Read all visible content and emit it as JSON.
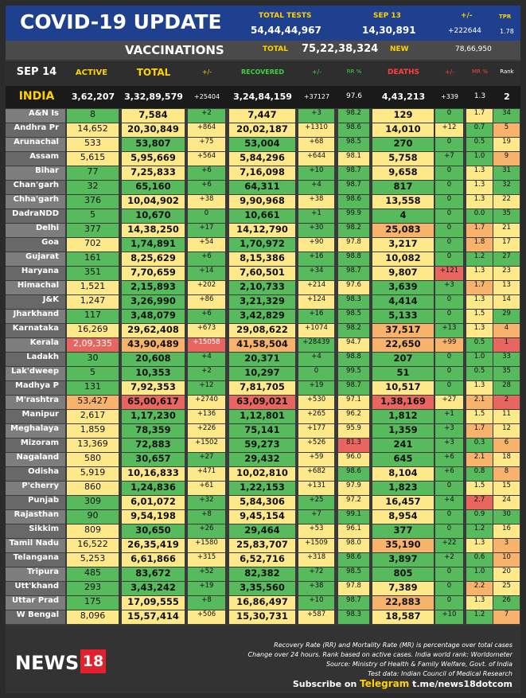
{
  "header": {
    "title": "COVID-19 UPDATE",
    "total_tests_label": "TOTAL TESTS",
    "total_tests": "54,44,44,967",
    "date_label": "SEP 13",
    "date_tests": "14,30,891",
    "change_label": "+/-",
    "change": "+222644",
    "tpr_label": "TPR",
    "tpr": "1.78"
  },
  "vaccinations": {
    "label": "VACCINATIONS",
    "total_label": "TOTAL",
    "total": "75,22,38,324",
    "new_label": "NEW",
    "new": "78,66,950"
  },
  "columns": {
    "date": "SEP 14",
    "active": "ACTIVE",
    "total": "TOTAL",
    "pm1": "+/-",
    "recovered": "RECOVERED",
    "pm2": "+/-",
    "rr": "RR %",
    "deaths": "DEATHS",
    "pm3": "+/-",
    "mr": "MR %",
    "rank": "Rank"
  },
  "india": {
    "name": "INDIA",
    "active": "3,62,207",
    "total": "3,32,89,579",
    "d_total": "+25404",
    "recovered": "3,24,84,159",
    "d_rec": "+37127",
    "rr": "97.6",
    "deaths": "4,43,213",
    "d_deaths": "+339",
    "mr": "1.3",
    "rank": "2"
  },
  "colors": {
    "header_bg": "#1f3f8f",
    "accent_yellow": "#ffd200",
    "green_text": "#3fd43f",
    "red_text": "#ff4040",
    "cell_green": "#57bb5e",
    "cell_yellow": "#fde98a",
    "cell_orange": "#f7b36b",
    "cell_red": "#e8665f"
  },
  "states": [
    {
      "name": "A&N Is",
      "active": "8",
      "total": "7,584",
      "d_total": "+2",
      "recovered": "7,447",
      "d_rec": "+3",
      "rr": "98.2",
      "deaths": "129",
      "d_deaths": "0",
      "mr": "1.7",
      "rank": "34",
      "c": [
        "g",
        "y",
        "g",
        "y",
        "g",
        "g",
        "y",
        "g",
        "y",
        "g"
      ]
    },
    {
      "name": "Andhra Pr",
      "active": "14,652",
      "total": "20,30,849",
      "d_total": "+864",
      "recovered": "20,02,187",
      "d_rec": "+1310",
      "rr": "98.6",
      "deaths": "14,010",
      "d_deaths": "+12",
      "mr": "0.7",
      "rank": "5",
      "c": [
        "y",
        "y",
        "y",
        "y",
        "y",
        "g",
        "y",
        "y",
        "g",
        "o"
      ]
    },
    {
      "name": "Arunachal",
      "active": "533",
      "total": "53,807",
      "d_total": "+75",
      "recovered": "53,004",
      "d_rec": "+68",
      "rr": "98.5",
      "deaths": "270",
      "d_deaths": "0",
      "mr": "0.5",
      "rank": "19",
      "c": [
        "y",
        "g",
        "y",
        "g",
        "y",
        "g",
        "g",
        "g",
        "g",
        "y"
      ]
    },
    {
      "name": "Assam",
      "active": "5,615",
      "total": "5,95,669",
      "d_total": "+564",
      "recovered": "5,84,296",
      "d_rec": "+644",
      "rr": "98.1",
      "deaths": "5,758",
      "d_deaths": "+7",
      "mr": "1.0",
      "rank": "9",
      "c": [
        "y",
        "y",
        "y",
        "y",
        "y",
        "y",
        "y",
        "g",
        "g",
        "o"
      ]
    },
    {
      "name": "Bihar",
      "active": "77",
      "total": "7,25,833",
      "d_total": "+6",
      "recovered": "7,16,098",
      "d_rec": "+10",
      "rr": "98.7",
      "deaths": "9,658",
      "d_deaths": "0",
      "mr": "1.3",
      "rank": "31",
      "c": [
        "g",
        "y",
        "g",
        "y",
        "g",
        "g",
        "y",
        "g",
        "y",
        "g"
      ]
    },
    {
      "name": "Chan'garh",
      "active": "32",
      "total": "65,160",
      "d_total": "+6",
      "recovered": "64,311",
      "d_rec": "+4",
      "rr": "98.7",
      "deaths": "817",
      "d_deaths": "0",
      "mr": "1.3",
      "rank": "32",
      "c": [
        "g",
        "g",
        "g",
        "g",
        "g",
        "g",
        "g",
        "g",
        "y",
        "g"
      ]
    },
    {
      "name": "Chha'garh",
      "active": "376",
      "total": "10,04,902",
      "d_total": "+38",
      "recovered": "9,90,968",
      "d_rec": "+38",
      "rr": "98.6",
      "deaths": "13,558",
      "d_deaths": "0",
      "mr": "1.3",
      "rank": "22",
      "c": [
        "g",
        "y",
        "y",
        "y",
        "y",
        "g",
        "y",
        "g",
        "y",
        "y"
      ]
    },
    {
      "name": "DadraNDD",
      "active": "5",
      "total": "10,670",
      "d_total": "0",
      "recovered": "10,661",
      "d_rec": "+1",
      "rr": "99.9",
      "deaths": "4",
      "d_deaths": "0",
      "mr": "0.0",
      "rank": "35",
      "c": [
        "g",
        "g",
        "g",
        "g",
        "g",
        "g",
        "g",
        "g",
        "g",
        "g"
      ]
    },
    {
      "name": "Delhi",
      "active": "377",
      "total": "14,38,250",
      "d_total": "+17",
      "recovered": "14,12,790",
      "d_rec": "+30",
      "rr": "98.2",
      "deaths": "25,083",
      "d_deaths": "0",
      "mr": "1.7",
      "rank": "21",
      "c": [
        "g",
        "y",
        "g",
        "y",
        "g",
        "g",
        "o",
        "g",
        "o",
        "y"
      ]
    },
    {
      "name": "Goa",
      "active": "702",
      "total": "1,74,891",
      "d_total": "+54",
      "recovered": "1,70,972",
      "d_rec": "+90",
      "rr": "97.8",
      "deaths": "3,217",
      "d_deaths": "0",
      "mr": "1.8",
      "rank": "17",
      "c": [
        "y",
        "g",
        "y",
        "g",
        "y",
        "y",
        "y",
        "g",
        "o",
        "y"
      ]
    },
    {
      "name": "Gujarat",
      "active": "161",
      "total": "8,25,629",
      "d_total": "+6",
      "recovered": "8,15,386",
      "d_rec": "+16",
      "rr": "98.8",
      "deaths": "10,082",
      "d_deaths": "0",
      "mr": "1.2",
      "rank": "27",
      "c": [
        "g",
        "y",
        "g",
        "y",
        "g",
        "g",
        "y",
        "g",
        "g",
        "g"
      ]
    },
    {
      "name": "Haryana",
      "active": "351",
      "total": "7,70,659",
      "d_total": "+14",
      "recovered": "7,60,501",
      "d_rec": "+34",
      "rr": "98.7",
      "deaths": "9,807",
      "d_deaths": "+121",
      "mr": "1.3",
      "rank": "23",
      "c": [
        "g",
        "y",
        "g",
        "y",
        "g",
        "g",
        "y",
        "r",
        "y",
        "y"
      ]
    },
    {
      "name": "Himachal",
      "active": "1,521",
      "total": "2,15,893",
      "d_total": "+202",
      "recovered": "2,10,733",
      "d_rec": "+214",
      "rr": "97.6",
      "deaths": "3,639",
      "d_deaths": "+3",
      "mr": "1.7",
      "rank": "13",
      "c": [
        "y",
        "g",
        "y",
        "g",
        "y",
        "y",
        "g",
        "g",
        "o",
        "y"
      ]
    },
    {
      "name": "J&K",
      "active": "1,247",
      "total": "3,26,990",
      "d_total": "+86",
      "recovered": "3,21,329",
      "d_rec": "+124",
      "rr": "98.3",
      "deaths": "4,414",
      "d_deaths": "0",
      "mr": "1.3",
      "rank": "14",
      "c": [
        "y",
        "g",
        "y",
        "g",
        "y",
        "g",
        "g",
        "g",
        "y",
        "y"
      ]
    },
    {
      "name": "Jharkhand",
      "active": "117",
      "total": "3,48,079",
      "d_total": "+6",
      "recovered": "3,42,829",
      "d_rec": "+16",
      "rr": "98.5",
      "deaths": "5,133",
      "d_deaths": "0",
      "mr": "1.5",
      "rank": "29",
      "c": [
        "g",
        "g",
        "g",
        "g",
        "g",
        "g",
        "g",
        "g",
        "y",
        "g"
      ]
    },
    {
      "name": "Karnataka",
      "active": "16,269",
      "total": "29,62,408",
      "d_total": "+673",
      "recovered": "29,08,622",
      "d_rec": "+1074",
      "rr": "98.2",
      "deaths": "37,517",
      "d_deaths": "+13",
      "mr": "1.3",
      "rank": "4",
      "c": [
        "y",
        "y",
        "y",
        "y",
        "y",
        "g",
        "o",
        "g",
        "y",
        "o"
      ]
    },
    {
      "name": "Kerala",
      "active": "2,09,335",
      "total": "43,90,489",
      "d_total": "+15058",
      "recovered": "41,58,504",
      "d_rec": "+28439",
      "rr": "94.7",
      "deaths": "22,650",
      "d_deaths": "+99",
      "mr": "0.5",
      "rank": "1",
      "c": [
        "r",
        "o",
        "r",
        "o",
        "g",
        "y",
        "o",
        "o",
        "g",
        "r"
      ]
    },
    {
      "name": "Ladakh",
      "active": "30",
      "total": "20,608",
      "d_total": "+4",
      "recovered": "20,371",
      "d_rec": "+4",
      "rr": "98.8",
      "deaths": "207",
      "d_deaths": "0",
      "mr": "1.0",
      "rank": "33",
      "c": [
        "g",
        "g",
        "g",
        "g",
        "g",
        "g",
        "g",
        "g",
        "g",
        "g"
      ]
    },
    {
      "name": "Lak'dweep",
      "active": "5",
      "total": "10,353",
      "d_total": "+2",
      "recovered": "10,297",
      "d_rec": "0",
      "rr": "99.5",
      "deaths": "51",
      "d_deaths": "0",
      "mr": "0.5",
      "rank": "35",
      "c": [
        "g",
        "g",
        "g",
        "g",
        "g",
        "g",
        "g",
        "g",
        "g",
        "g"
      ]
    },
    {
      "name": "Madhya P",
      "active": "131",
      "total": "7,92,353",
      "d_total": "+12",
      "recovered": "7,81,705",
      "d_rec": "+19",
      "rr": "98.7",
      "deaths": "10,517",
      "d_deaths": "0",
      "mr": "1.3",
      "rank": "28",
      "c": [
        "g",
        "y",
        "g",
        "y",
        "g",
        "g",
        "y",
        "g",
        "y",
        "g"
      ]
    },
    {
      "name": "M'rashtra",
      "active": "53,427",
      "total": "65,00,617",
      "d_total": "+2740",
      "recovered": "63,09,021",
      "d_rec": "+530",
      "rr": "97.1",
      "deaths": "1,38,169",
      "d_deaths": "+27",
      "mr": "2.1",
      "rank": "2",
      "c": [
        "o",
        "r",
        "y",
        "r",
        "y",
        "y",
        "r",
        "y",
        "o",
        "r"
      ]
    },
    {
      "name": "Manipur",
      "active": "2,617",
      "total": "1,17,230",
      "d_total": "+136",
      "recovered": "1,12,801",
      "d_rec": "+265",
      "rr": "96.2",
      "deaths": "1,812",
      "d_deaths": "+1",
      "mr": "1.5",
      "rank": "11",
      "c": [
        "y",
        "g",
        "y",
        "g",
        "y",
        "y",
        "g",
        "g",
        "y",
        "y"
      ]
    },
    {
      "name": "Meghalaya",
      "active": "1,859",
      "total": "78,359",
      "d_total": "+226",
      "recovered": "75,141",
      "d_rec": "+177",
      "rr": "95.9",
      "deaths": "1,359",
      "d_deaths": "+3",
      "mr": "1.7",
      "rank": "12",
      "c": [
        "y",
        "g",
        "y",
        "g",
        "y",
        "y",
        "g",
        "g",
        "o",
        "y"
      ]
    },
    {
      "name": "Mizoram",
      "active": "13,369",
      "total": "72,883",
      "d_total": "+1502",
      "recovered": "59,273",
      "d_rec": "+526",
      "rr": "81.3",
      "deaths": "241",
      "d_deaths": "+3",
      "mr": "0.3",
      "rank": "6",
      "c": [
        "y",
        "g",
        "y",
        "g",
        "y",
        "r",
        "g",
        "g",
        "g",
        "o"
      ]
    },
    {
      "name": "Nagaland",
      "active": "580",
      "total": "30,657",
      "d_total": "+27",
      "recovered": "29,432",
      "d_rec": "+59",
      "rr": "96.0",
      "deaths": "645",
      "d_deaths": "+6",
      "mr": "2.1",
      "rank": "18",
      "c": [
        "y",
        "g",
        "g",
        "g",
        "y",
        "y",
        "g",
        "g",
        "o",
        "y"
      ]
    },
    {
      "name": "Odisha",
      "active": "5,919",
      "total": "10,16,833",
      "d_total": "+471",
      "recovered": "10,02,810",
      "d_rec": "+682",
      "rr": "98.6",
      "deaths": "8,104",
      "d_deaths": "+6",
      "mr": "0.8",
      "rank": "8",
      "c": [
        "y",
        "y",
        "y",
        "y",
        "y",
        "g",
        "y",
        "g",
        "g",
        "o"
      ]
    },
    {
      "name": "P'cherry",
      "active": "860",
      "total": "1,24,836",
      "d_total": "+61",
      "recovered": "1,22,153",
      "d_rec": "+131",
      "rr": "97.9",
      "deaths": "1,823",
      "d_deaths": "0",
      "mr": "1.5",
      "rank": "15",
      "c": [
        "y",
        "g",
        "y",
        "g",
        "y",
        "y",
        "g",
        "g",
        "y",
        "y"
      ]
    },
    {
      "name": "Punjab",
      "active": "309",
      "total": "6,01,072",
      "d_total": "+32",
      "recovered": "5,84,306",
      "d_rec": "+25",
      "rr": "97.2",
      "deaths": "16,457",
      "d_deaths": "+4",
      "mr": "2.7",
      "rank": "24",
      "c": [
        "g",
        "y",
        "g",
        "y",
        "g",
        "y",
        "y",
        "g",
        "r",
        "y"
      ]
    },
    {
      "name": "Rajasthan",
      "active": "90",
      "total": "9,54,198",
      "d_total": "+8",
      "recovered": "9,45,154",
      "d_rec": "+7",
      "rr": "99.1",
      "deaths": "8,954",
      "d_deaths": "0",
      "mr": "0.9",
      "rac": "",
      "rank": "30",
      "c": [
        "g",
        "y",
        "g",
        "y",
        "g",
        "g",
        "y",
        "g",
        "g",
        "g"
      ]
    },
    {
      "name": "Sikkim",
      "active": "809",
      "total": "30,650",
      "d_total": "+26",
      "recovered": "29,464",
      "d_rec": "+53",
      "rr": "96.1",
      "deaths": "377",
      "d_deaths": "0",
      "mr": "1.2",
      "rank": "16",
      "c": [
        "y",
        "g",
        "g",
        "g",
        "y",
        "y",
        "g",
        "g",
        "g",
        "y"
      ]
    },
    {
      "name": "Tamil Nadu",
      "active": "16,522",
      "total": "26,35,419",
      "d_total": "+1580",
      "recovered": "25,83,707",
      "d_rec": "+1509",
      "rr": "98.0",
      "deaths": "35,190",
      "d_deaths": "+22",
      "mr": "1.3",
      "rank": "3",
      "c": [
        "y",
        "y",
        "y",
        "y",
        "y",
        "y",
        "o",
        "g",
        "y",
        "o"
      ]
    },
    {
      "name": "Telangana",
      "active": "5,253",
      "total": "6,61,866",
      "d_total": "+315",
      "recovered": "6,52,716",
      "d_rec": "+318",
      "rr": "98.6",
      "deaths": "3,897",
      "d_deaths": "+2",
      "mr": "0.6",
      "rank": "10",
      "c": [
        "y",
        "y",
        "y",
        "y",
        "y",
        "g",
        "g",
        "g",
        "g",
        "o"
      ]
    },
    {
      "name": "Tripura",
      "active": "485",
      "total": "83,672",
      "d_total": "+52",
      "recovered": "82,382",
      "d_rec": "+72",
      "rr": "98.5",
      "deaths": "805",
      "d_deaths": "0",
      "mr": "1.0",
      "rank": "20",
      "c": [
        "g",
        "g",
        "g",
        "g",
        "g",
        "g",
        "g",
        "g",
        "g",
        "y"
      ]
    },
    {
      "name": "Utt'khand",
      "active": "293",
      "total": "3,43,242",
      "d_total": "+19",
      "recovered": "3,35,560",
      "d_rec": "+38",
      "rr": "97.8",
      "deaths": "7,389",
      "d_deaths": "0",
      "mr": "2.2",
      "rank": "25",
      "c": [
        "g",
        "g",
        "g",
        "g",
        "g",
        "y",
        "y",
        "g",
        "o",
        "y"
      ]
    },
    {
      "name": "Uttar Prad",
      "active": "175",
      "total": "17,09,555",
      "d_total": "+8",
      "recovered": "16,86,497",
      "d_rec": "+10",
      "rr": "98.7",
      "deaths": "22,883",
      "d_deaths": "0",
      "mr": "1.3",
      "rank": "26",
      "c": [
        "g",
        "y",
        "g",
        "y",
        "g",
        "g",
        "o",
        "g",
        "y",
        "g"
      ]
    },
    {
      "name": "W Bengal",
      "active": "8,096",
      "total": "15,57,414",
      "d_total": "+506",
      "recovered": "15,30,731",
      "d_rec": "+587",
      "rr": "98.3",
      "deaths": "18,587",
      "d_deaths": "+10",
      "mr": "1.2",
      "rank": "7",
      "c": [
        "y",
        "y",
        "y",
        "y",
        "y",
        "g",
        "y",
        "g",
        "g",
        "o"
      ]
    }
  ],
  "footer": {
    "note1": "Recovery Rate (RR) and Mortality Rate (MR) is percentage over total cases",
    "note2": "Change over 24 hours. Rank based on active cases. India world rank: Worldometer",
    "note3": "Source: Ministry of Health & Family Welfare, Govt. of India",
    "note4": "Test data: Indian Council of Medical Research",
    "logo_text": "NEWS",
    "logo_num": "18",
    "subscribe": "Subscribe on",
    "telegram": "Telegram",
    "link": "t.me/news18dotcom"
  }
}
